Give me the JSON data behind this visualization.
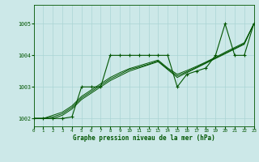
{
  "title": "Graphe pression niveau de la mer (hPa)",
  "bg_color": "#cce8e8",
  "grid_color": "#aad4d4",
  "line_color": "#005500",
  "xlim": [
    0,
    23
  ],
  "ylim": [
    1001.75,
    1005.6
  ],
  "yticks": [
    1002,
    1003,
    1004,
    1005
  ],
  "xticks": [
    0,
    1,
    2,
    3,
    4,
    5,
    6,
    7,
    8,
    9,
    10,
    11,
    12,
    13,
    14,
    15,
    16,
    17,
    18,
    19,
    20,
    21,
    22,
    23
  ],
  "series_marker": {
    "x": [
      0,
      1,
      2,
      3,
      4,
      5,
      6,
      7,
      8,
      9,
      10,
      11,
      12,
      13,
      14,
      15,
      16,
      17,
      18,
      19,
      20,
      21,
      22,
      23
    ],
    "y": [
      1002.0,
      1002.0,
      1002.0,
      1002.0,
      1002.05,
      1003.0,
      1003.0,
      1003.0,
      1004.0,
      1004.0,
      1004.0,
      1004.0,
      1004.0,
      1004.0,
      1004.0,
      1003.0,
      1003.4,
      1003.5,
      1003.6,
      1004.0,
      1005.0,
      1004.0,
      1004.0,
      1005.0
    ]
  },
  "series_smooth": [
    [
      1002.0,
      1002.0,
      1002.0,
      1002.1,
      1002.3,
      1002.6,
      1002.8,
      1003.0,
      1003.2,
      1003.35,
      1003.5,
      1003.6,
      1003.7,
      1003.8,
      1003.55,
      1003.3,
      1003.45,
      1003.6,
      1003.75,
      1003.9,
      1004.05,
      1004.2,
      1004.35,
      1005.0
    ],
    [
      1002.0,
      1002.0,
      1002.05,
      1002.15,
      1002.35,
      1002.65,
      1002.85,
      1003.05,
      1003.25,
      1003.4,
      1003.55,
      1003.63,
      1003.72,
      1003.82,
      1003.57,
      1003.35,
      1003.48,
      1003.62,
      1003.77,
      1003.92,
      1004.07,
      1004.22,
      1004.37,
      1005.0
    ],
    [
      1002.0,
      1002.0,
      1002.1,
      1002.2,
      1002.4,
      1002.7,
      1002.9,
      1003.1,
      1003.3,
      1003.45,
      1003.58,
      1003.67,
      1003.76,
      1003.85,
      1003.6,
      1003.4,
      1003.52,
      1003.65,
      1003.79,
      1003.94,
      1004.1,
      1004.25,
      1004.4,
      1005.0
    ]
  ]
}
